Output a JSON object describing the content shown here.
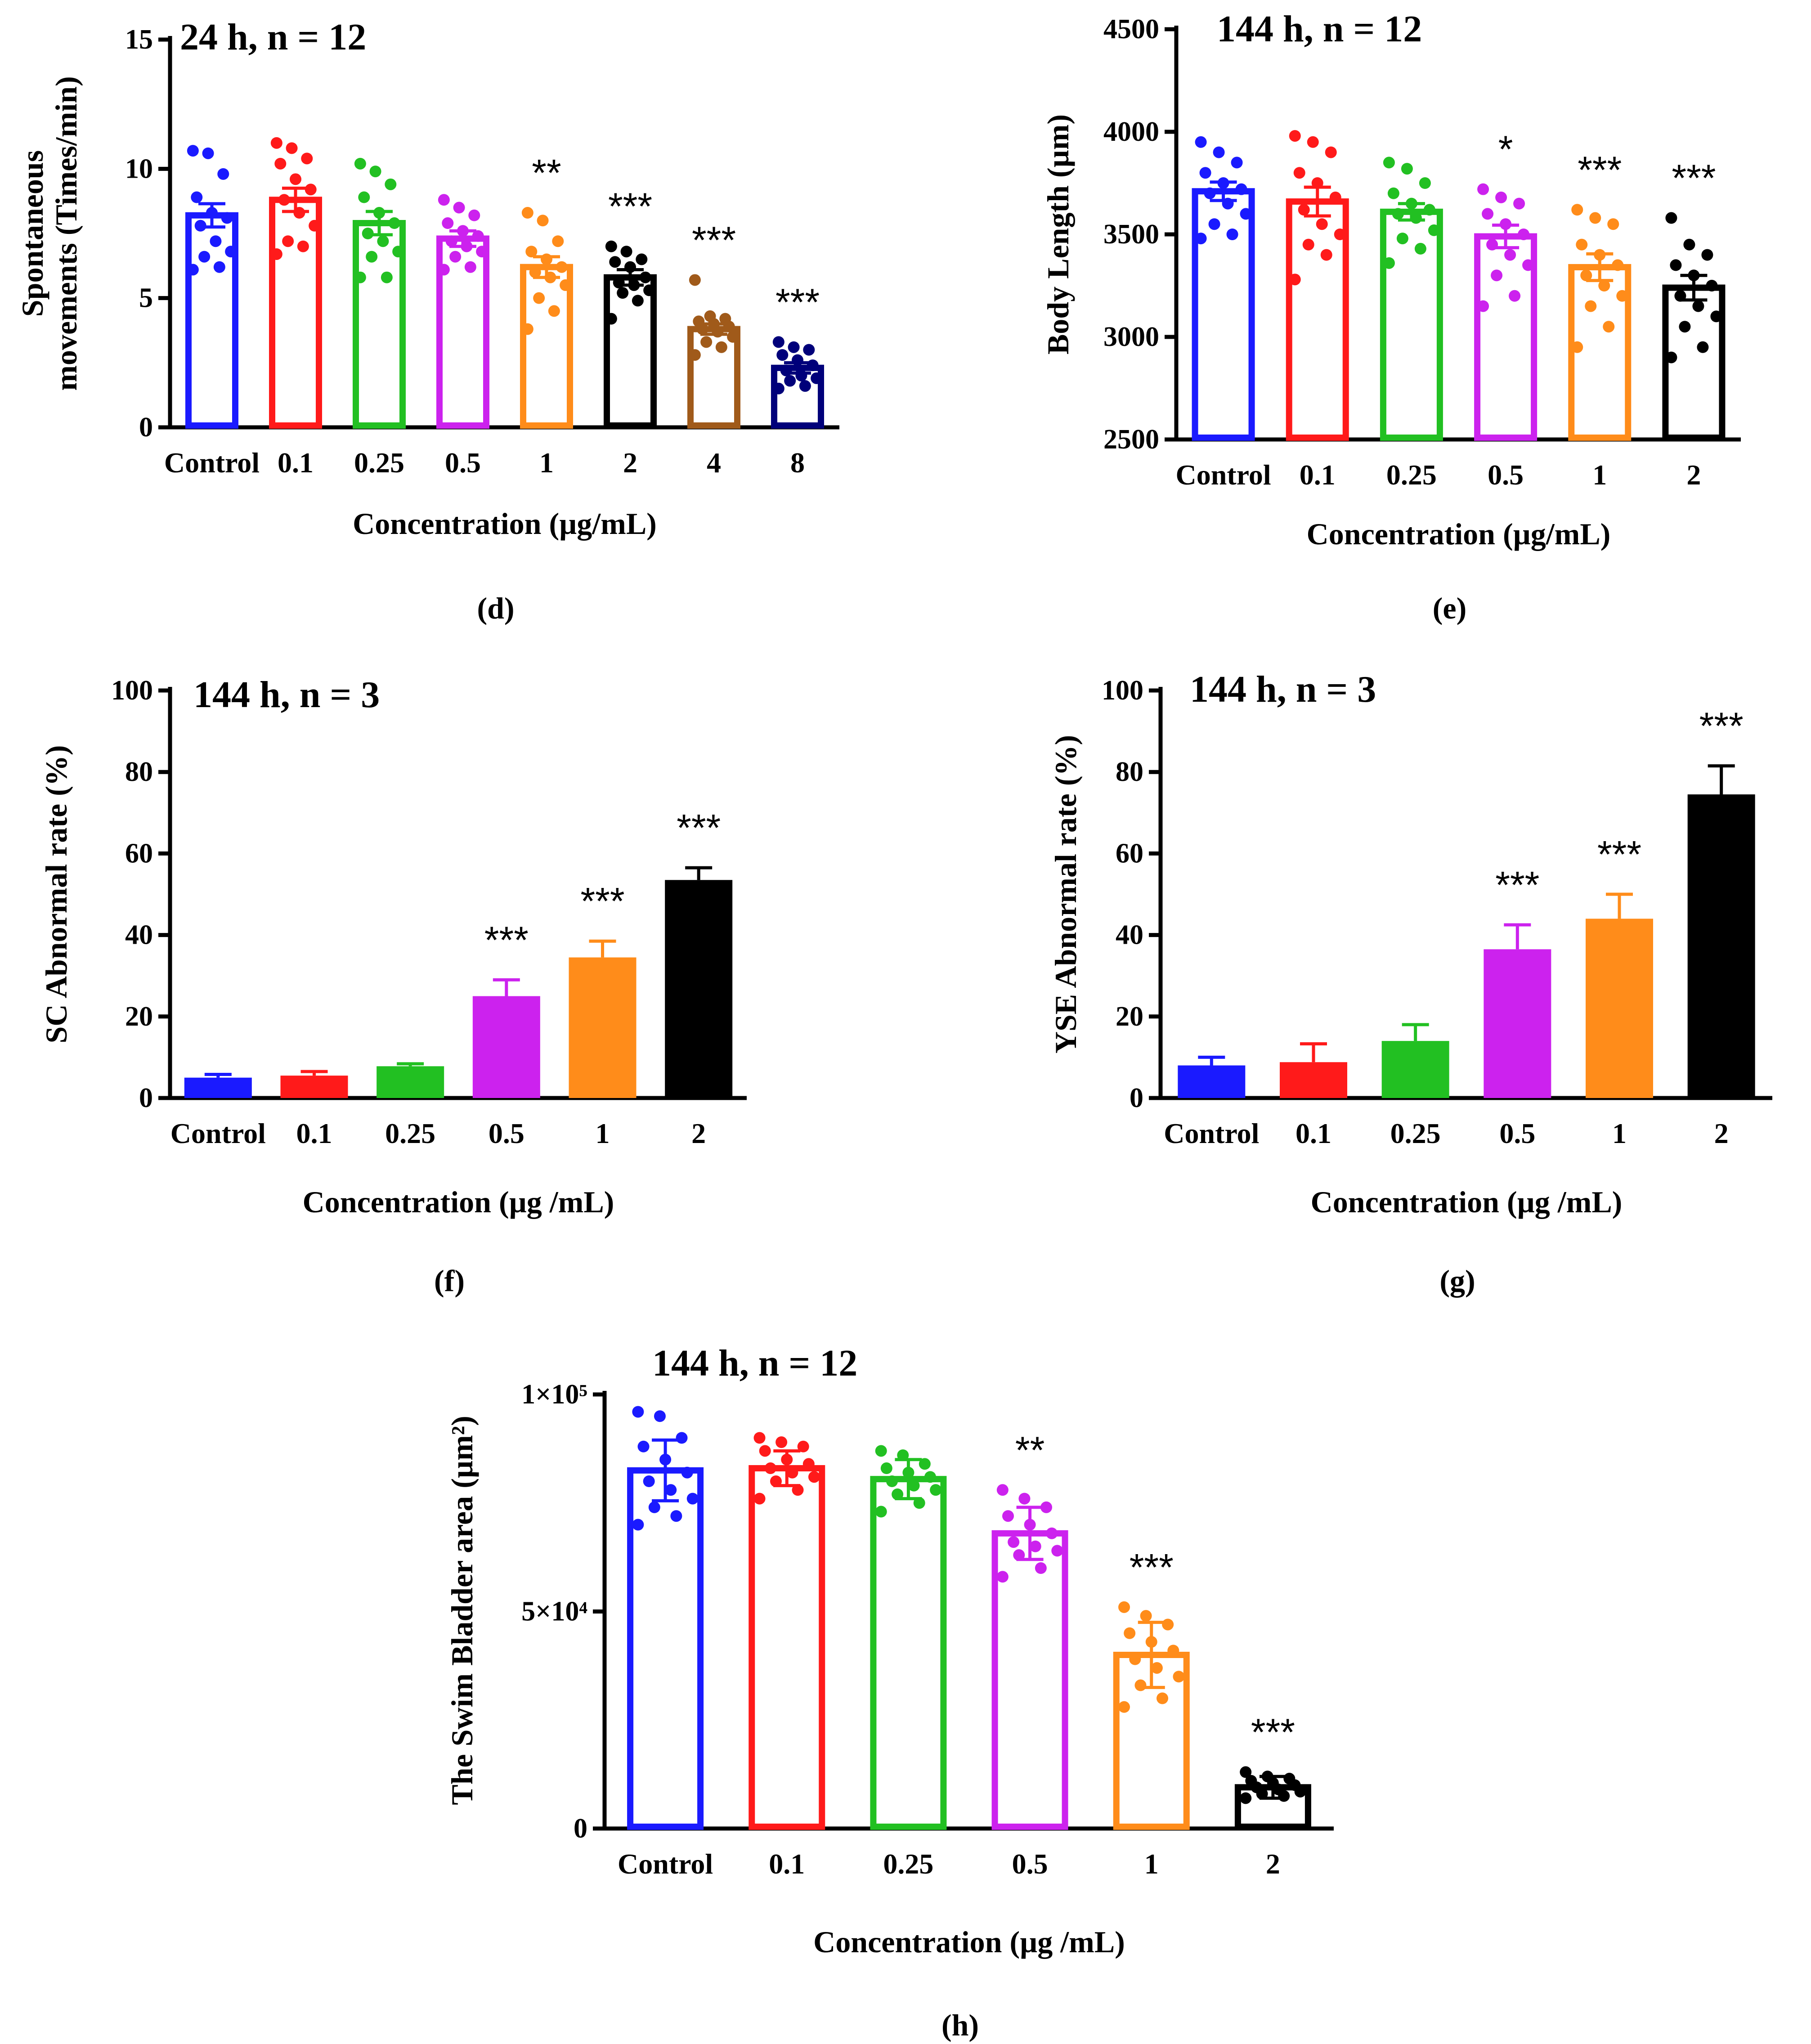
{
  "chart_data": [
    {
      "panel": "(d)",
      "type": "bar",
      "title": "24 h, n = 12",
      "xlabel": "Concentration (µg/mL)",
      "ylabel_lines": [
        "Spontaneous",
        "movements (Times/min)"
      ],
      "ylim": [
        0,
        15
      ],
      "yticks": [
        "0",
        "5",
        "10",
        "15"
      ],
      "categories": [
        "Control",
        "0.1",
        "0.25",
        "0.5",
        "1",
        "2",
        "4",
        "8"
      ],
      "values": [
        8.2,
        8.8,
        7.9,
        7.3,
        6.2,
        5.8,
        3.8,
        2.3
      ],
      "errors": [
        0.45,
        0.45,
        0.45,
        0.3,
        0.4,
        0.3,
        0.2,
        0.2
      ],
      "points": [
        [
          10.7,
          10.6,
          9.8,
          8.9,
          8.3,
          8.1,
          7.8,
          7.2,
          6.8,
          6.6,
          6.2,
          6.1
        ],
        [
          11.0,
          10.8,
          10.4,
          10.2,
          9.6,
          9.2,
          8.8,
          8.3,
          7.8,
          7.2,
          7.0,
          6.7
        ],
        [
          10.2,
          9.9,
          9.4,
          8.9,
          8.3,
          7.9,
          7.5,
          7.2,
          6.8,
          6.6,
          5.8,
          5.8
        ],
        [
          8.8,
          8.5,
          8.2,
          7.9,
          7.6,
          7.4,
          7.2,
          7.0,
          6.8,
          6.6,
          6.2,
          6.1
        ],
        [
          8.3,
          8.0,
          7.2,
          6.8,
          6.5,
          6.2,
          6.0,
          5.8,
          5.5,
          5.0,
          4.5,
          3.8
        ],
        [
          7.0,
          6.8,
          6.5,
          6.4,
          6.2,
          5.8,
          5.6,
          5.5,
          5.3,
          5.2,
          4.9,
          4.2
        ],
        [
          5.7,
          4.3,
          4.2,
          4.1,
          4.0,
          3.9,
          3.8,
          3.7,
          3.5,
          3.3,
          3.1,
          2.8
        ],
        [
          3.3,
          3.1,
          3.0,
          2.8,
          2.6,
          2.4,
          2.2,
          2.0,
          1.9,
          1.8,
          1.6,
          1.5
        ]
      ],
      "colors": [
        "#1a1aff",
        "#ff1a1a",
        "#22c022",
        "#cc22ee",
        "#ff8c1a",
        "#000000",
        "#a05a1a",
        "#00007a"
      ],
      "significance": [
        "",
        "",
        "",
        "",
        "**",
        "***",
        "***",
        "***"
      ]
    },
    {
      "panel": "(e)",
      "type": "bar",
      "title": "144 h, n = 12",
      "xlabel": "Concentration (µg/mL)",
      "ylabel_lines": [
        "Body Length (µm)"
      ],
      "ylim": [
        2500,
        4500
      ],
      "yticks": [
        "2500",
        "3000",
        "3500",
        "4000",
        "4500"
      ],
      "categories": [
        "Control",
        "0.1",
        "0.25",
        "0.5",
        "1",
        "2"
      ],
      "values": [
        3710,
        3660,
        3610,
        3490,
        3340,
        3240
      ],
      "errors": [
        45,
        70,
        40,
        55,
        65,
        60
      ],
      "points": [
        [
          3950,
          3900,
          3850,
          3800,
          3750,
          3720,
          3700,
          3650,
          3600,
          3550,
          3500,
          3480
        ],
        [
          3980,
          3950,
          3900,
          3800,
          3750,
          3680,
          3620,
          3550,
          3500,
          3450,
          3400,
          3280
        ],
        [
          3850,
          3820,
          3750,
          3700,
          3650,
          3620,
          3600,
          3580,
          3520,
          3480,
          3430,
          3360
        ],
        [
          3720,
          3680,
          3650,
          3600,
          3550,
          3500,
          3450,
          3400,
          3350,
          3300,
          3200,
          3150
        ],
        [
          3620,
          3580,
          3550,
          3450,
          3400,
          3350,
          3300,
          3250,
          3200,
          3150,
          3050,
          2950
        ],
        [
          3580,
          3450,
          3400,
          3350,
          3300,
          3250,
          3200,
          3150,
          3100,
          3050,
          2950,
          2900
        ]
      ],
      "colors": [
        "#1a1aff",
        "#ff1a1a",
        "#22c022",
        "#cc22ee",
        "#ff8c1a",
        "#000000"
      ],
      "significance": [
        "",
        "",
        "",
        "*",
        "***",
        "***"
      ]
    },
    {
      "panel": "(f)",
      "type": "bar",
      "title": "144 h, n = 3",
      "xlabel": "Concentration (µg /mL)",
      "ylabel_lines": [
        "SC Abnormal rate (%)"
      ],
      "ylim": [
        0,
        100
      ],
      "yticks": [
        "0",
        "20",
        "40",
        "60",
        "80",
        "100"
      ],
      "categories": [
        "Control",
        "0.1",
        "0.25",
        "0.5",
        "1",
        "2"
      ],
      "values": [
        5,
        5.5,
        7.8,
        25,
        34.5,
        53.5
      ],
      "errors": [
        0.8,
        1.0,
        0.6,
        4.0,
        4.0,
        3.0
      ],
      "colors": [
        "#1a1aff",
        "#ff1a1a",
        "#22c022",
        "#cc22ee",
        "#ff8c1a",
        "#000000"
      ],
      "significance": [
        "",
        "",
        "",
        "***",
        "***",
        "***"
      ]
    },
    {
      "panel": "(g)",
      "type": "bar",
      "title": "144 h, n = 3",
      "xlabel": "Concentration (µg /mL)",
      "ylabel_lines": [
        "YSE Abnormal rate (%)"
      ],
      "ylim": [
        0,
        100
      ],
      "yticks": [
        "0",
        "20",
        "40",
        "60",
        "80",
        "100"
      ],
      "categories": [
        "Control",
        "0.1",
        "0.25",
        "0.5",
        "1",
        "2"
      ],
      "values": [
        8,
        8.8,
        14,
        36.5,
        44,
        74.5
      ],
      "errors": [
        2.0,
        4.5,
        4.0,
        6.0,
        6.0,
        7.0
      ],
      "colors": [
        "#1a1aff",
        "#ff1a1a",
        "#22c022",
        "#cc22ee",
        "#ff8c1a",
        "#000000"
      ],
      "significance": [
        "",
        "",
        "",
        "***",
        "***",
        "***"
      ]
    },
    {
      "panel": "(h)",
      "type": "bar",
      "title": "144 h, n = 12",
      "xlabel": "Concentration (µg /mL)",
      "ylabel_lines": [
        "The Swim Bladder area (µm²)"
      ],
      "ylim": [
        0,
        100000
      ],
      "ytick_values": [
        0,
        50000,
        100000
      ],
      "yticks": [
        "0",
        "5×10⁴",
        "1×10⁵"
      ],
      "categories": [
        "Control",
        "0.1",
        "0.25",
        "0.5",
        "1",
        "2"
      ],
      "values": [
        82500,
        83000,
        80500,
        68000,
        40000,
        9500
      ],
      "errors": [
        7000,
        4000,
        4500,
        6000,
        7500,
        2500
      ],
      "points": [
        [
          96000,
          95000,
          90000,
          88000,
          85000,
          82000,
          80000,
          78000,
          76000,
          74000,
          72000,
          70000
        ],
        [
          90000,
          89000,
          88000,
          87000,
          85000,
          84000,
          83000,
          82000,
          81000,
          80000,
          78000,
          76000
        ],
        [
          87000,
          86000,
          84000,
          83000,
          82000,
          81000,
          80000,
          79000,
          78000,
          77000,
          75000,
          73000
        ],
        [
          78000,
          76000,
          74000,
          72000,
          70000,
          68000,
          66000,
          65000,
          64000,
          63000,
          60000,
          58000
        ],
        [
          51000,
          49000,
          47000,
          45000,
          43000,
          41000,
          39000,
          37000,
          35000,
          33000,
          30000,
          28000
        ],
        [
          13000,
          12000,
          11500,
          11000,
          10500,
          10000,
          9500,
          9000,
          8500,
          8000,
          7500,
          7000
        ]
      ],
      "colors": [
        "#1a1aff",
        "#ff1a1a",
        "#22c022",
        "#cc22ee",
        "#ff8c1a",
        "#000000"
      ],
      "significance": [
        "",
        "",
        "",
        "**",
        "***",
        "***"
      ]
    }
  ]
}
